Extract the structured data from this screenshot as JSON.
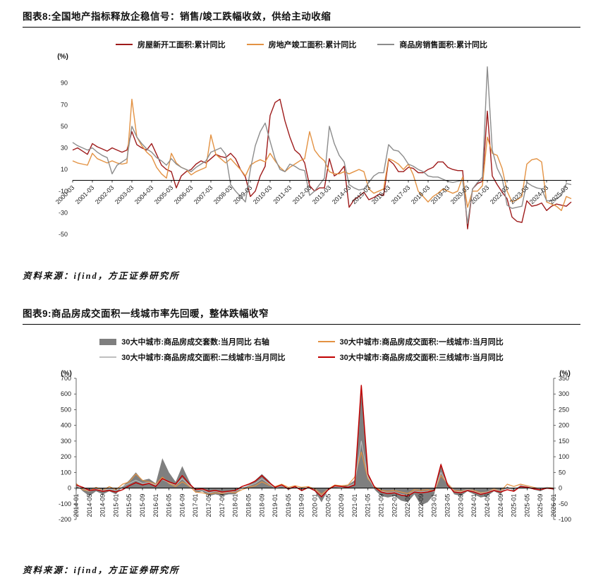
{
  "figure8": {
    "caption": "图表8:全国地产指标释放企稳信号：销售/竣工跌幅收敛，供给主动收缩",
    "source": "资料来源：ifind，方正证券研究所"
  },
  "figure9": {
    "caption": "图表9:商品房成交面积一线城市率先回暖，整体跌幅收窄",
    "source": "资料来源：ifind，方正证券研究所"
  },
  "chart_data": [
    {
      "type": "line",
      "title": "全国地产指标释放企稳信号：销售/竣工跌幅收敛，供给主动收缩",
      "legend_position": "top",
      "unit_left": "(%)",
      "ylim": [
        -50,
        110
      ],
      "y_ticks": [
        90,
        70,
        50,
        30,
        10,
        -10,
        -30,
        -50
      ],
      "x_tick_every": 4,
      "x_tick_labels": [
        "2000-03",
        "2001-03",
        "2002-03",
        "2003-03",
        "2004-03",
        "2005-03",
        "2006-03",
        "2007-03",
        "2008-03",
        "2009-03",
        "2010-03",
        "2011-03",
        "2012-03",
        "2013-03",
        "2014-03",
        "2015-03",
        "2016-03",
        "2017-03",
        "2018-03",
        "2019-03",
        "2020-03",
        "2021-03",
        "2022-03",
        "2023-03",
        "2024-03",
        "2025-03"
      ],
      "series": [
        {
          "name": "房屋新开工面积:累计同比",
          "color": "#9E1B1B",
          "axis": "left",
          "style": "line",
          "values": [
            28,
            30,
            27,
            24,
            34,
            31,
            29,
            27,
            30,
            28,
            26,
            28,
            45,
            33,
            30,
            28,
            34,
            24,
            14,
            10,
            8,
            -7,
            4,
            8,
            10,
            15,
            18,
            16,
            20,
            24,
            22,
            21,
            25,
            20,
            10,
            3,
            -15,
            -10,
            4,
            13,
            60,
            72,
            75,
            55,
            40,
            28,
            24,
            16,
            -5,
            -10,
            -7,
            -7,
            20,
            4,
            7,
            13,
            -25,
            -18,
            -15,
            -11,
            -18,
            -16,
            -13,
            -14,
            19,
            15,
            8,
            8,
            12,
            11,
            7,
            7,
            10,
            12,
            17,
            17,
            12,
            10,
            9,
            9,
            -45,
            -8,
            -3,
            -1,
            64,
            4,
            -4,
            -11,
            -17,
            -34,
            -38,
            -39,
            -19,
            -24,
            -23,
            -21,
            -28,
            -24,
            -22,
            -23,
            -24,
            -20
          ]
        },
        {
          "name": "房地产竣工面积:累计同比",
          "color": "#E39243",
          "axis": "left",
          "style": "line",
          "values": [
            18,
            16,
            15,
            14,
            25,
            20,
            18,
            16,
            18,
            16,
            15,
            16,
            75,
            40,
            32,
            26,
            22,
            12,
            6,
            2,
            25,
            16,
            12,
            10,
            5,
            8,
            10,
            12,
            42,
            24,
            20,
            16,
            20,
            15,
            10,
            4,
            14,
            17,
            19,
            17,
            25,
            18,
            12,
            8,
            12,
            15,
            18,
            20,
            45,
            28,
            22,
            18,
            8,
            6,
            6,
            8,
            6,
            8,
            10,
            8,
            -8,
            -12,
            -10,
            -8,
            20,
            18,
            15,
            10,
            15,
            5,
            -10,
            -15,
            -20,
            -15,
            -12,
            -8,
            -10,
            -12,
            -10,
            3,
            -25,
            -10,
            -10,
            -5,
            40,
            25,
            23,
            11,
            -10,
            -20,
            -18,
            -15,
            15,
            19,
            20,
            17,
            -20,
            -22,
            -24,
            -28,
            -15,
            -17
          ]
        },
        {
          "name": "商品房销售面积:累计同比",
          "color": "#8C8C8C",
          "axis": "left",
          "style": "line",
          "values": [
            35,
            32,
            30,
            28,
            30,
            26,
            23,
            21,
            6,
            14,
            17,
            20,
            50,
            40,
            34,
            29,
            26,
            21,
            18,
            14,
            20,
            15,
            12,
            10,
            8,
            12,
            15,
            18,
            26,
            28,
            30,
            24,
            -4,
            -10,
            -15,
            -20,
            10,
            32,
            45,
            53,
            36,
            20,
            10,
            8,
            15,
            13,
            10,
            9,
            -14,
            -10,
            -4,
            2,
            50,
            34,
            23,
            17,
            -4,
            -7,
            -9,
            -8,
            -2,
            4,
            7,
            7,
            33,
            28,
            27,
            22,
            15,
            13,
            10,
            8,
            4,
            3,
            3,
            1,
            -1,
            -2,
            -1,
            0,
            -40,
            -8,
            -2,
            3,
            105,
            28,
            11,
            2,
            -23,
            -26,
            -25,
            -24,
            -2,
            -5,
            -7,
            -8,
            -19,
            -19,
            -17,
            -14,
            -3,
            -4
          ]
        }
      ]
    },
    {
      "type": "line+area",
      "title": "商品房成交面积一线城市率先回暖，整体跌幅收窄",
      "legend_position": "top",
      "unit_left": "(%)",
      "unit_right": "(%)",
      "ylim_left": [
        -200,
        700
      ],
      "y_ticks_left": [
        700,
        600,
        500,
        400,
        300,
        200,
        100,
        0,
        -100,
        -200
      ],
      "ylim_right": [
        -100,
        350
      ],
      "y_ticks_right": [
        350,
        300,
        250,
        200,
        150,
        100,
        50,
        0,
        -50,
        -100
      ],
      "x_tick_every": 2,
      "x_tick_labels": [
        "2014-01",
        "2014-05",
        "2014-09",
        "2015-01",
        "2015-05",
        "2015-09",
        "2016-01",
        "2016-05",
        "2016-09",
        "2017-01",
        "2017-05",
        "2017-09",
        "2018-01",
        "2018-05",
        "2018-09",
        "2019-01",
        "2019-05",
        "2019-09",
        "2020-01",
        "2020-05",
        "2020-09",
        "2021-01",
        "2021-05",
        "2021-09",
        "2022-01",
        "2022-05",
        "2022-09",
        "2023-01",
        "2023-05",
        "2023-09",
        "2024-01",
        "2024-05",
        "2024-09",
        "2025-01",
        "2025-05",
        "2025-09",
        "2026-01"
      ],
      "series": [
        {
          "name": "30大中城市:商品房成交套数:当月同比 右轴",
          "color": "#7F7F7F",
          "axis": "right",
          "style": "area",
          "values": [
            10,
            -10,
            -25,
            -10,
            -20,
            -10,
            -20,
            5,
            25,
            50,
            25,
            30,
            15,
            95,
            50,
            20,
            70,
            25,
            -15,
            -10,
            -25,
            -20,
            -25,
            -20,
            -20,
            0,
            10,
            25,
            45,
            25,
            0,
            10,
            -5,
            5,
            -10,
            0,
            -10,
            -45,
            -5,
            10,
            5,
            10,
            25,
            325,
            45,
            -5,
            -25,
            -30,
            -25,
            -40,
            -45,
            -20,
            -55,
            -45,
            -20,
            80,
            15,
            -20,
            -25,
            -10,
            -20,
            -30,
            -25,
            -10,
            -20,
            5,
            -10,
            10,
            5,
            -5,
            -10,
            0,
            -5
          ]
        },
        {
          "name": "30大中城市:商品房成交面积:一线城市:当月同比",
          "color": "#E39243",
          "axis": "left",
          "style": "line",
          "values": [
            30,
            -10,
            -20,
            5,
            -15,
            10,
            -10,
            25,
            40,
            90,
            50,
            40,
            25,
            70,
            30,
            10,
            40,
            15,
            -25,
            -30,
            -40,
            -30,
            -35,
            -25,
            -30,
            -10,
            5,
            15,
            40,
            20,
            10,
            25,
            5,
            15,
            5,
            10,
            -5,
            -40,
            -5,
            20,
            15,
            20,
            70,
            230,
            60,
            10,
            -15,
            -20,
            -15,
            -25,
            -35,
            -10,
            -15,
            -10,
            -20,
            80,
            30,
            -15,
            -20,
            -10,
            -15,
            -30,
            -25,
            -5,
            -20,
            25,
            10,
            25,
            15,
            5,
            -5,
            5,
            0
          ]
        },
        {
          "name": "30大中城市:商品房成交面积:二线城市:当月同比",
          "color": "#BFBFBF",
          "axis": "left",
          "style": "line",
          "values": [
            15,
            0,
            -20,
            -5,
            -15,
            -5,
            -15,
            10,
            30,
            50,
            30,
            35,
            20,
            55,
            35,
            20,
            60,
            20,
            -15,
            -10,
            -30,
            -20,
            -30,
            -25,
            -20,
            0,
            15,
            30,
            60,
            30,
            0,
            15,
            -10,
            5,
            -10,
            0,
            -10,
            -50,
            -5,
            10,
            5,
            10,
            30,
            300,
            70,
            0,
            -20,
            -30,
            -25,
            -40,
            -45,
            -20,
            -25,
            -20,
            -20,
            100,
            25,
            -20,
            -25,
            -10,
            -20,
            -35,
            -25,
            -10,
            -20,
            0,
            -10,
            15,
            10,
            0,
            -5,
            5,
            -5
          ]
        },
        {
          "name": "30大中城市:商品房成交面积:三线城市:当月同比",
          "color": "#C00000",
          "axis": "left",
          "style": "line",
          "values": [
            20,
            5,
            -15,
            -10,
            -20,
            -15,
            -25,
            -10,
            15,
            35,
            20,
            30,
            10,
            60,
            40,
            25,
            80,
            30,
            -10,
            -5,
            -20,
            -15,
            -25,
            -20,
            -15,
            10,
            25,
            45,
            80,
            40,
            5,
            20,
            -5,
            10,
            -15,
            5,
            -15,
            -55,
            -10,
            15,
            10,
            5,
            20,
            655,
            90,
            5,
            -25,
            -35,
            -30,
            -45,
            -50,
            -25,
            -30,
            -25,
            -15,
            150,
            20,
            -25,
            -30,
            -15,
            -25,
            -40,
            -30,
            -15,
            -25,
            -10,
            -20,
            10,
            5,
            -5,
            -10,
            0,
            -5
          ]
        }
      ]
    }
  ]
}
